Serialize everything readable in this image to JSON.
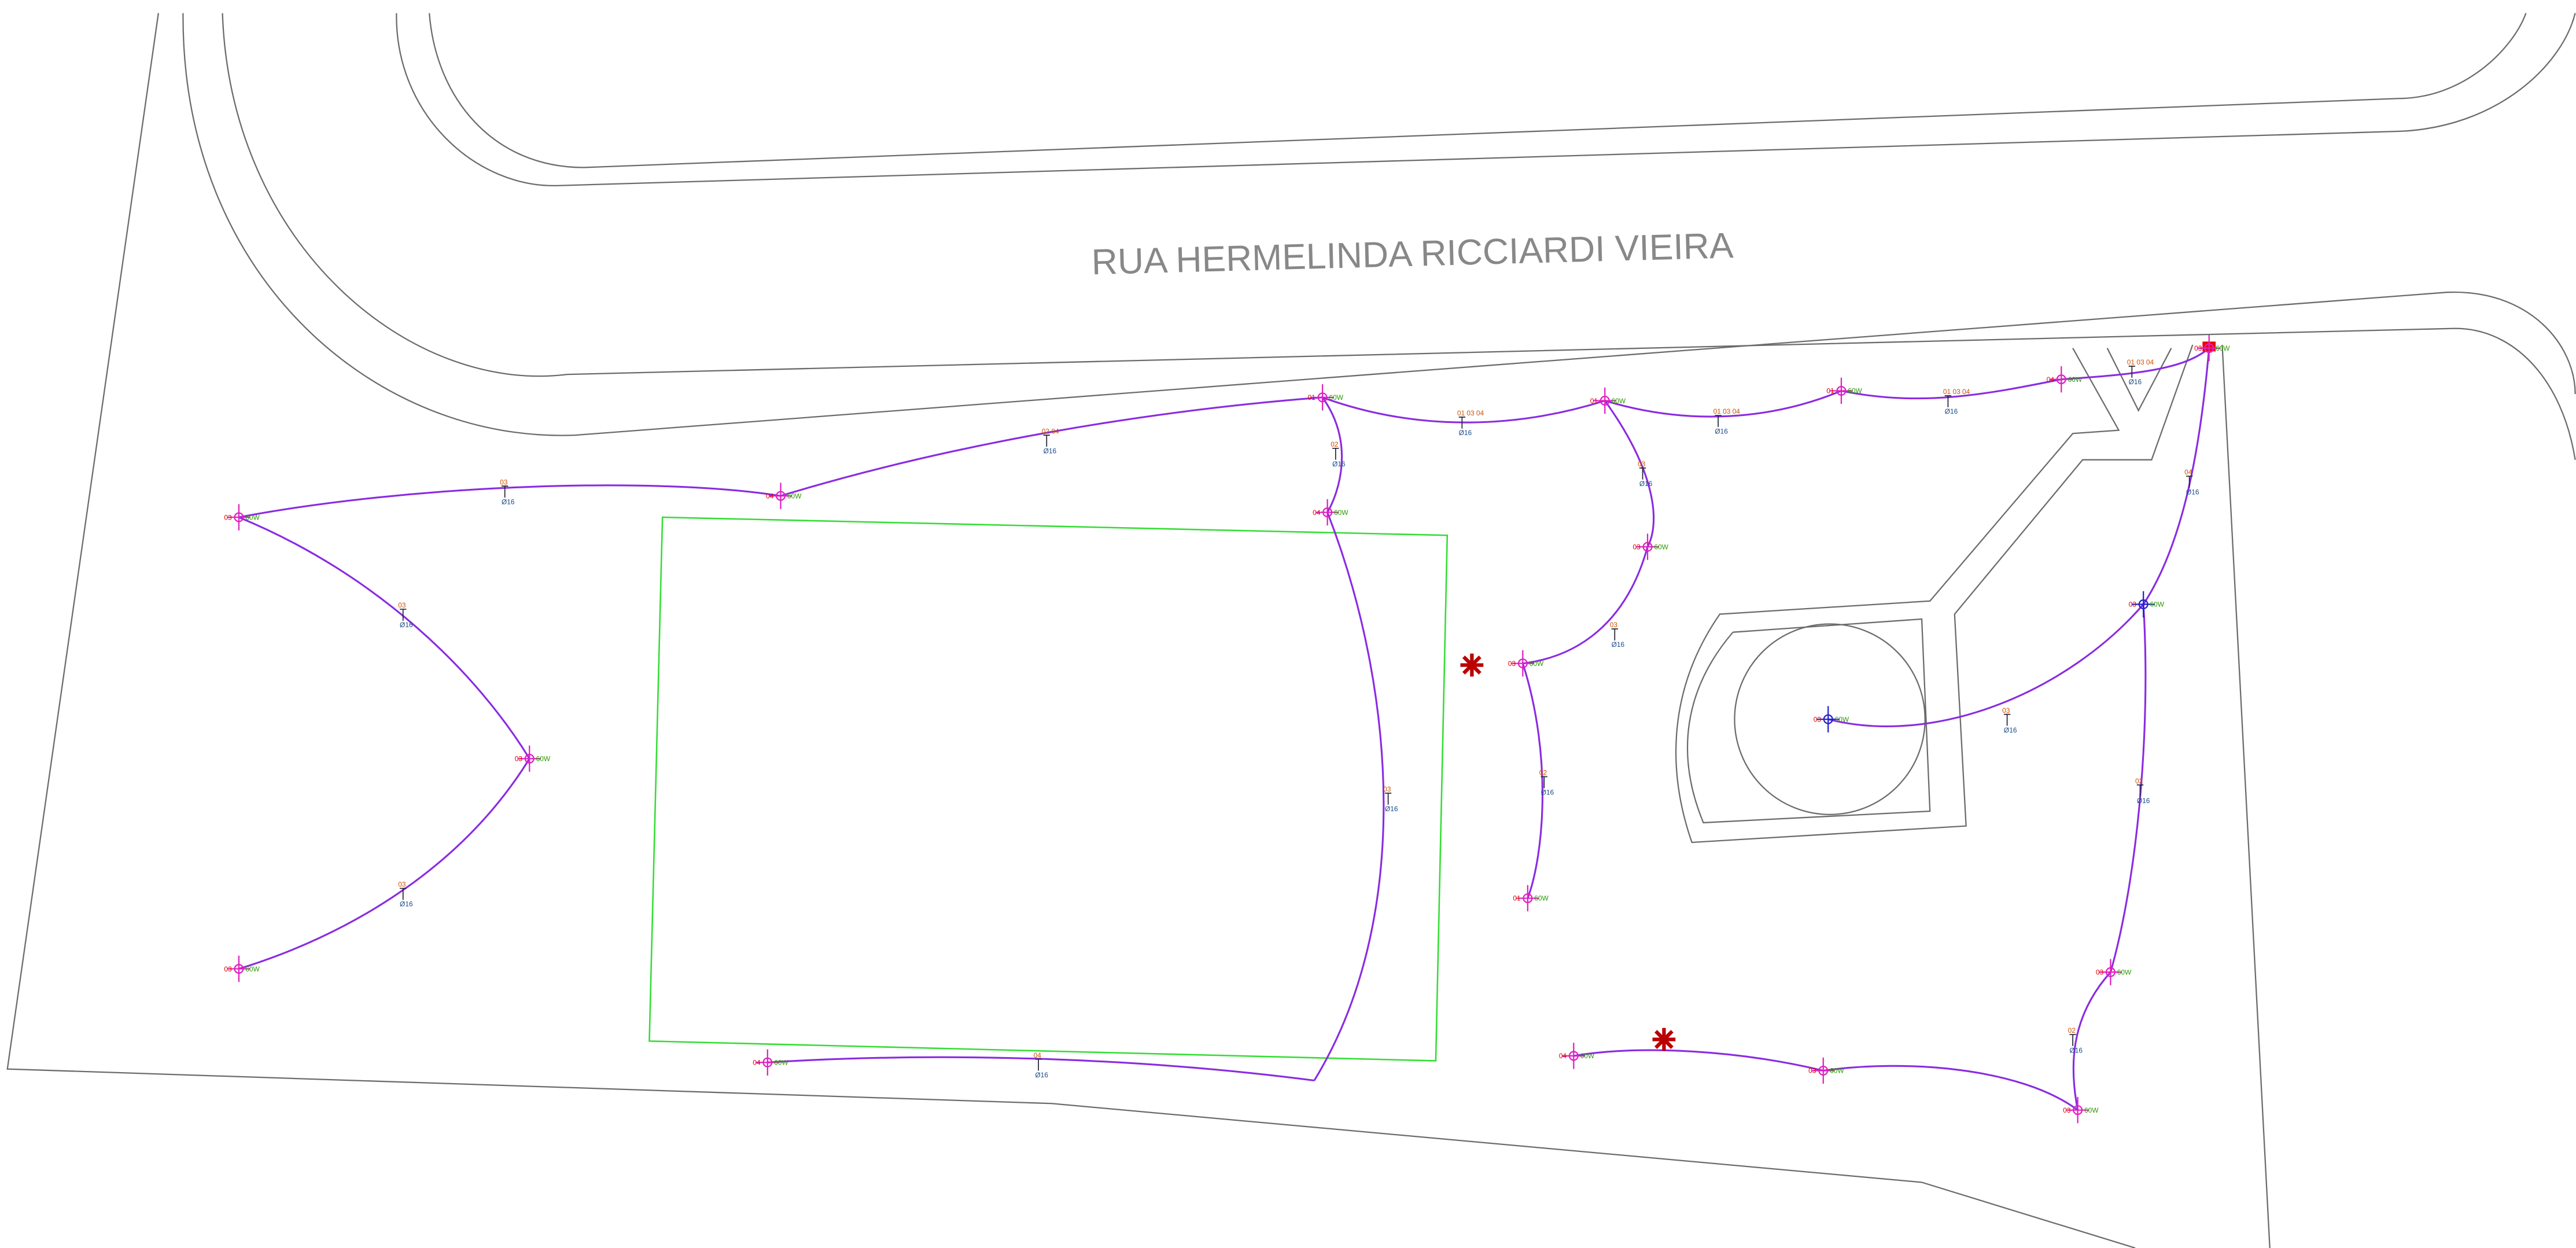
{
  "street": {
    "name": "RUA HERMELINDA RICCIARDI VIEIRA"
  },
  "poles": [
    {
      "label": "03",
      "power": "60W"
    },
    {
      "label": "03",
      "power": "60W"
    },
    {
      "label": "03",
      "power": "60W"
    },
    {
      "label": "04",
      "power": "60W"
    },
    {
      "label": "01",
      "power": "60W"
    },
    {
      "label": "04",
      "power": "60W"
    },
    {
      "label": "01",
      "power": "60W"
    },
    {
      "label": "03",
      "power": "60W"
    },
    {
      "label": "03",
      "power": "60W"
    },
    {
      "label": "01",
      "power": "60W"
    },
    {
      "label": "01",
      "power": "60W"
    },
    {
      "label": "04",
      "power": "60W"
    },
    {
      "label": "03",
      "power": "60W"
    },
    {
      "label": "03",
      "power": "60W"
    },
    {
      "label": "03",
      "power": "60W"
    },
    {
      "label": "03",
      "power": "60W"
    },
    {
      "label": "03",
      "power": "60W"
    },
    {
      "label": "03",
      "power": "60W"
    },
    {
      "label": "04",
      "power": "60W"
    },
    {
      "label": "04",
      "power": "60W"
    }
  ],
  "spans": [
    {
      "label": "03",
      "cable": "Ø16"
    },
    {
      "label": "02 04",
      "cable": "Ø16"
    },
    {
      "label": "01 03 04",
      "cable": "Ø16"
    },
    {
      "label": "01 03 04",
      "cable": "Ø16"
    },
    {
      "label": "01 03 04",
      "cable": "Ø16"
    },
    {
      "label": "01 03 04",
      "cable": "Ø16"
    },
    {
      "label": "03",
      "cable": "Ø16"
    },
    {
      "label": "03",
      "cable": "Ø16"
    },
    {
      "label": "04",
      "cable": "Ø16"
    },
    {
      "label": "02",
      "cable": "Ø16"
    },
    {
      "label": "03",
      "cable": "Ø16"
    },
    {
      "label": "03",
      "cable": "Ø16"
    },
    {
      "label": "02",
      "cable": "Ø16"
    },
    {
      "label": "03",
      "cable": "Ø16"
    },
    {
      "label": "03",
      "cable": "Ø16"
    },
    {
      "label": "02",
      "cable": "Ø16"
    },
    {
      "label": "04",
      "cable": "Ø16"
    },
    {
      "label": "02",
      "cable": "Ø16"
    }
  ]
}
